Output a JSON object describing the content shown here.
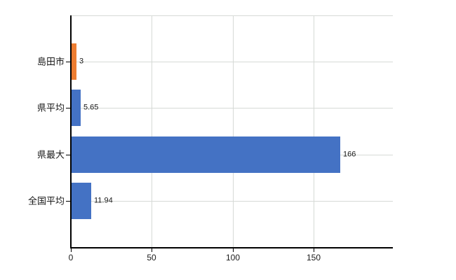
{
  "chart_data": {
    "type": "bar",
    "orientation": "horizontal",
    "title": "",
    "categories": [
      "島田市",
      "県平均",
      "県最大",
      "全国平均"
    ],
    "values": [
      3,
      5.65,
      166,
      11.94
    ],
    "value_labels": [
      "3",
      "5.65",
      "166",
      "11.94"
    ],
    "bar_colors": [
      "#ED7D31",
      "#4472C4",
      "#4472C4",
      "#4472C4"
    ],
    "x_tick_labels": [
      "0",
      "50",
      "100",
      "150"
    ],
    "x_tick_values": [
      0,
      50,
      100,
      150
    ],
    "xlim": [
      0,
      199
    ],
    "grid": true,
    "legend_position": "none",
    "colors": {
      "grid": "#d6dad6",
      "axis": "#000000",
      "text": "#1a1a1a",
      "background": "#ffffff",
      "accent_orange": "#ED7D31",
      "accent_blue": "#4472C4"
    }
  }
}
